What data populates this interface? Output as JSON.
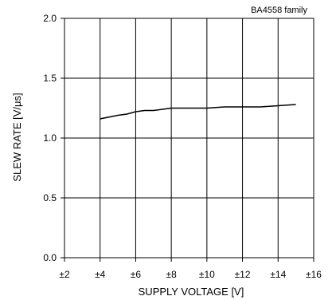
{
  "chart_data": {
    "type": "line",
    "title": "BA4558 family",
    "xlabel": "SUPPLY VOLTAGE [V]",
    "ylabel": "SLEW RATE [V/μs]",
    "xlim": [
      2,
      16
    ],
    "ylim": [
      0,
      2.0
    ],
    "x_ticks": [
      {
        "value": 2,
        "label": "±2"
      },
      {
        "value": 4,
        "label": "±4"
      },
      {
        "value": 6,
        "label": "±6"
      },
      {
        "value": 8,
        "label": "±8"
      },
      {
        "value": 10,
        "label": "±10"
      },
      {
        "value": 12,
        "label": "±12"
      },
      {
        "value": 14,
        "label": "±14"
      },
      {
        "value": 16,
        "label": "±16"
      }
    ],
    "y_ticks": [
      {
        "value": 0,
        "label": "0.0"
      },
      {
        "value": 0.5,
        "label": "0.5"
      },
      {
        "value": 1.0,
        "label": "1.0"
      },
      {
        "value": 1.5,
        "label": "1.5"
      },
      {
        "value": 2.0,
        "label": "2.0"
      }
    ],
    "grid": true,
    "series": [
      {
        "x": [
          4,
          5,
          5.5,
          6,
          6.5,
          7,
          8,
          9,
          10,
          11,
          12,
          13,
          14,
          15
        ],
        "y": [
          1.16,
          1.19,
          1.2,
          1.22,
          1.23,
          1.23,
          1.25,
          1.25,
          1.25,
          1.26,
          1.26,
          1.26,
          1.27,
          1.28
        ]
      }
    ]
  },
  "colors": {
    "line": "#000000",
    "grid": "#000000",
    "background": "#ffffff"
  }
}
